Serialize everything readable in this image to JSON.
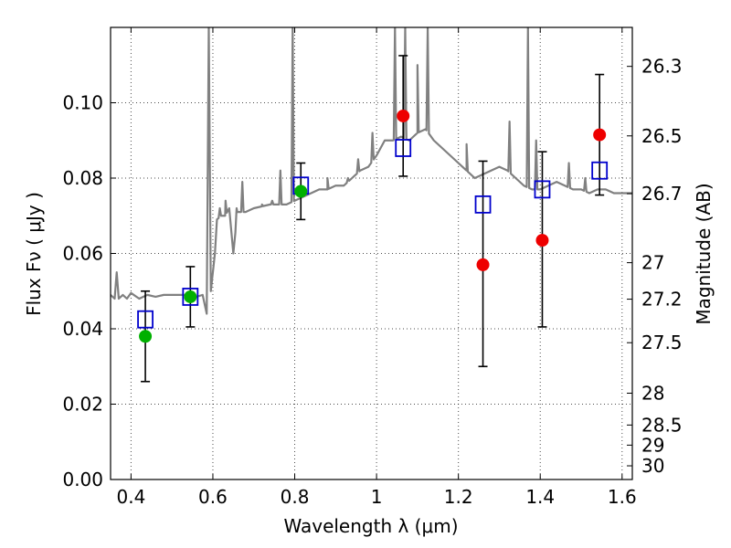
{
  "chart_data": {
    "type": "scatter",
    "xlabel": "Wavelength  λ (μm)",
    "ylabel": "Flux  Fν  ( μJy )",
    "y2label": "Magnitude (AB)",
    "xlim": [
      0.35,
      1.625
    ],
    "ylim": [
      0.0,
      0.12
    ],
    "x_ticks": [
      0.4,
      0.6,
      0.8,
      1.0,
      1.2,
      1.4,
      1.6
    ],
    "x_tick_labels": [
      "0.4",
      "0.6",
      "0.8",
      "1",
      "1.2",
      "1.4",
      "1.6"
    ],
    "y_ticks": [
      0.0,
      0.02,
      0.04,
      0.06,
      0.08,
      0.1
    ],
    "y_tick_labels": [
      "0.00",
      "0.02",
      "0.04",
      "0.06",
      "0.08",
      "0.10"
    ],
    "mag_ticks": [
      26.3,
      26.5,
      26.7,
      27,
      27.2,
      27.5,
      28,
      28.5,
      29,
      30
    ],
    "mag_tick_labels": [
      "26.3",
      "26.5",
      "26.7",
      "27",
      "27.2",
      "27.5",
      "28",
      "28.5",
      "29",
      "30"
    ],
    "grid": true,
    "colors": {
      "template": "#808080",
      "model": "#0000cc",
      "green": "#00b000",
      "red": "#ee0000",
      "error": "#000000"
    },
    "template_spectrum": {
      "x": [
        0.35,
        0.36,
        0.365,
        0.37,
        0.38,
        0.39,
        0.4,
        0.42,
        0.44,
        0.46,
        0.48,
        0.5,
        0.52,
        0.54,
        0.56,
        0.575,
        0.585,
        0.59,
        0.595,
        0.6,
        0.605,
        0.61,
        0.62,
        0.63,
        0.64,
        0.65,
        0.66,
        0.68,
        0.7,
        0.72,
        0.74,
        0.76,
        0.78,
        0.8,
        0.82,
        0.84,
        0.86,
        0.88,
        0.9,
        0.92,
        0.94,
        0.96,
        0.98,
        1.0,
        1.02,
        1.04,
        1.06,
        1.08,
        1.1,
        1.12,
        1.14,
        1.16,
        1.18,
        1.2,
        1.22,
        1.24,
        1.26,
        1.28,
        1.3,
        1.32,
        1.34,
        1.36,
        1.38,
        1.4,
        1.42,
        1.44,
        1.46,
        1.48,
        1.5,
        1.52,
        1.54,
        1.56,
        1.58,
        1.6,
        1.625
      ],
      "y": [
        0.049,
        0.048,
        0.055,
        0.048,
        0.049,
        0.048,
        0.0495,
        0.048,
        0.049,
        0.0485,
        0.049,
        0.049,
        0.049,
        0.049,
        0.0485,
        0.049,
        0.044,
        0.12,
        0.05,
        0.055,
        0.06,
        0.069,
        0.07,
        0.07,
        0.072,
        0.06,
        0.071,
        0.071,
        0.072,
        0.0725,
        0.073,
        0.073,
        0.073,
        0.074,
        0.075,
        0.076,
        0.077,
        0.077,
        0.078,
        0.078,
        0.08,
        0.082,
        0.083,
        0.086,
        0.09,
        0.09,
        0.091,
        0.09,
        0.092,
        0.093,
        0.09,
        0.088,
        0.086,
        0.084,
        0.082,
        0.08,
        0.081,
        0.082,
        0.083,
        0.082,
        0.08,
        0.078,
        0.077,
        0.077,
        0.078,
        0.079,
        0.078,
        0.077,
        0.077,
        0.076,
        0.077,
        0.077,
        0.076,
        0.076,
        0.076
      ],
      "emission_lines": [
        {
          "x": 0.365,
          "peak": 0.055
        },
        {
          "x": 0.59,
          "peak": 0.12
        },
        {
          "x": 0.617,
          "peak": 0.072
        },
        {
          "x": 0.631,
          "peak": 0.074
        },
        {
          "x": 0.658,
          "peak": 0.072
        },
        {
          "x": 0.672,
          "peak": 0.079
        },
        {
          "x": 0.72,
          "peak": 0.073
        },
        {
          "x": 0.745,
          "peak": 0.074
        },
        {
          "x": 0.765,
          "peak": 0.082
        },
        {
          "x": 0.795,
          "peak": 0.12
        },
        {
          "x": 0.88,
          "peak": 0.08
        },
        {
          "x": 0.93,
          "peak": 0.08
        },
        {
          "x": 0.955,
          "peak": 0.085
        },
        {
          "x": 0.99,
          "peak": 0.092
        },
        {
          "x": 1.045,
          "peak": 0.12
        },
        {
          "x": 1.07,
          "peak": 0.12
        },
        {
          "x": 1.1,
          "peak": 0.11
        },
        {
          "x": 1.125,
          "peak": 0.12
        },
        {
          "x": 1.22,
          "peak": 0.089
        },
        {
          "x": 1.325,
          "peak": 0.095
        },
        {
          "x": 1.37,
          "peak": 0.12
        },
        {
          "x": 1.39,
          "peak": 0.09
        },
        {
          "x": 1.47,
          "peak": 0.084
        },
        {
          "x": 1.51,
          "peak": 0.08
        }
      ]
    },
    "series": [
      {
        "marker": "open-square",
        "color": "#0000cc",
        "x": [
          0.435,
          0.545,
          0.815,
          1.065,
          1.26,
          1.405,
          1.545
        ],
        "y": [
          0.0425,
          0.0485,
          0.078,
          0.088,
          0.073,
          0.077,
          0.082
        ]
      },
      {
        "marker": "filled-circle",
        "color": "#00b000",
        "x": [
          0.435,
          0.545,
          0.815
        ],
        "y": [
          0.038,
          0.0485,
          0.0765
        ],
        "yerr_low": [
          0.026,
          0.0405,
          0.069
        ],
        "yerr_high": [
          0.05,
          0.0565,
          0.084
        ]
      },
      {
        "marker": "filled-circle",
        "color": "#ee0000",
        "x": [
          1.065,
          1.26,
          1.405,
          1.545
        ],
        "y": [
          0.0965,
          0.057,
          0.0635,
          0.0915
        ],
        "yerr_low": [
          0.0805,
          0.03,
          0.0405,
          0.0755
        ],
        "yerr_high": [
          0.1125,
          0.0845,
          0.087,
          0.1075
        ]
      }
    ]
  }
}
